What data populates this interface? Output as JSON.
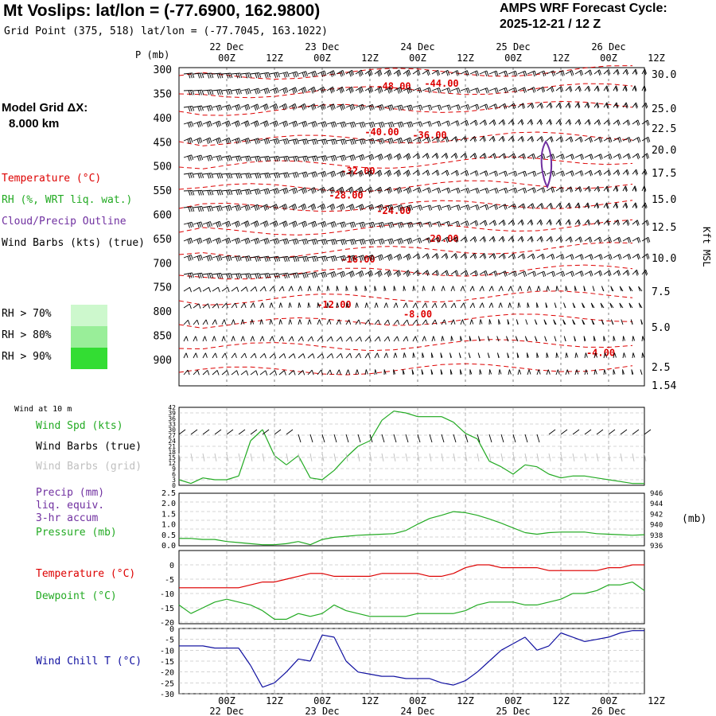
{
  "header": {
    "title": "Mt Voslips:  lat/lon = (-77.6900, 162.9800)",
    "grid_point": "Grid Point (375, 518) lat/lon = (-77.7045, 163.1022)",
    "cycle_label": "AMPS WRF Forecast Cycle:",
    "cycle_value": "2025-12-21 / 12  Z"
  },
  "model": {
    "label": "Model Grid ΔX:",
    "value": "8.000 km"
  },
  "colors": {
    "temperature": "#dd0000",
    "rh": "#22aa22",
    "cloud": "#7030a0",
    "wind_grid": "#c0c0c0",
    "wind_chill": "#1010a0",
    "rh70": "#cdf8cd",
    "rh80": "#99ee99",
    "rh90": "#33dd33"
  },
  "legend": {
    "temperature": "Temperature (°C)",
    "rh": "RH (%, WRT liq. wat.)",
    "cloud": "Cloud/Precip Outline",
    "wind": "Wind Barbs (kts) (true)",
    "rh70": "RH > 70%",
    "rh80": "RH > 80%",
    "rh90": "RH > 90%",
    "wind10m": "Wind at 10 m",
    "wind_spd": "Wind Spd (kts)",
    "barbs_true": "Wind Barbs (true)",
    "barbs_grid": "Wind Barbs (grid)",
    "precip": "Precip (mm)",
    "liq": "liq. equiv.",
    "accum": "3-hr accum",
    "pressure": "Pressure (mb)",
    "temp2": "Temperature (°C)",
    "dewpoint": "Dewpoint (°C)",
    "windchill": "Wind Chill T (°C)"
  },
  "chart_data": [
    {
      "type": "contour",
      "id": "cross-section",
      "ylabel": "P (mb)",
      "right_label": "Kft MSL",
      "x": {
        "range": [
          0,
          117
        ],
        "unit": "hours from 2025-12-21 12Z"
      },
      "time_ticks": [
        "00Z",
        "12Z",
        "00Z",
        "12Z",
        "00Z",
        "12Z",
        "00Z",
        "12Z",
        "00Z",
        "12Z"
      ],
      "date_ticks": [
        "22 Dec",
        "23 Dec",
        "24 Dec",
        "25 Dec",
        "26 Dec"
      ],
      "pressure_ticks": [
        300,
        350,
        400,
        450,
        500,
        550,
        600,
        650,
        700,
        750,
        800,
        850,
        900
      ],
      "kft_ticks": [
        "30.0",
        "25.0",
        "22.5",
        "20.0",
        "17.5",
        "15.0",
        "12.5",
        "10.0",
        "7.5",
        "5.0",
        "2.5",
        "1.54"
      ],
      "temperature_contours": [
        {
          "label": "-48.00",
          "x": 54,
          "p": 334
        },
        {
          "label": "-44.00",
          "x": 66,
          "p": 328
        },
        {
          "label": "-40.00",
          "x": 51,
          "p": 428
        },
        {
          "label": "-36.00",
          "x": 63,
          "p": 435
        },
        {
          "label": "-32.00",
          "x": 45,
          "p": 509
        },
        {
          "label": "-28.00",
          "x": 42,
          "p": 559
        },
        {
          "label": "-24.00",
          "x": 54,
          "p": 591
        },
        {
          "label": "-20.00",
          "x": 66,
          "p": 649
        },
        {
          "label": "-16.00",
          "x": 45,
          "p": 691
        },
        {
          "label": "-12.00",
          "x": 39,
          "p": 785
        },
        {
          "label": "-8.00",
          "x": 60,
          "p": 805
        },
        {
          "label": "-4.00",
          "x": 106,
          "p": 885
        }
      ]
    },
    {
      "type": "line",
      "id": "wind-speed-10m",
      "x": [
        0,
        3,
        6,
        9,
        12,
        15,
        18,
        21,
        24,
        27,
        30,
        33,
        36,
        39,
        42,
        45,
        48,
        51,
        54,
        57,
        60,
        63,
        66,
        69,
        72,
        75,
        78,
        81,
        84,
        87,
        90,
        93,
        96,
        99,
        102,
        105,
        108,
        111,
        114,
        117
      ],
      "series": [
        {
          "name": "Wind Spd (kts)",
          "values": [
            3,
            1,
            4,
            3,
            3,
            5,
            24,
            30,
            16,
            11,
            16,
            4,
            3,
            8,
            15,
            21,
            24,
            35,
            40,
            39,
            37,
            37,
            37,
            34,
            28,
            25,
            13,
            10,
            6,
            11,
            10,
            6,
            4,
            5,
            5,
            4,
            3,
            2,
            1,
            1
          ]
        }
      ],
      "ylim": [
        0,
        42
      ],
      "y_ticks": [
        0,
        3,
        6,
        9,
        12,
        15,
        18,
        21,
        24,
        27,
        30,
        33,
        36,
        39,
        42
      ]
    },
    {
      "type": "line",
      "id": "precip-pressure",
      "x": [
        0,
        3,
        6,
        9,
        12,
        15,
        18,
        21,
        24,
        27,
        30,
        33,
        36,
        39,
        42,
        45,
        48,
        51,
        54,
        57,
        60,
        63,
        66,
        69,
        72,
        75,
        78,
        81,
        84,
        87,
        90,
        93,
        96,
        99,
        102,
        105,
        108,
        111,
        114,
        117
      ],
      "series": [
        {
          "name": "Pressure (mb)",
          "values": [
            937.4,
            937.4,
            937.2,
            937.2,
            936.8,
            936.6,
            936.4,
            936.2,
            936.2,
            936.4,
            936.8,
            936.2,
            937.2,
            937.6,
            937.8,
            938.0,
            938.1,
            938.2,
            938.3,
            938.9,
            940.1,
            941.2,
            941.8,
            942.5,
            942.3,
            941.8,
            941.1,
            940.3,
            939.4,
            938.5,
            938.2,
            938.5,
            938.6,
            938.6,
            938.6,
            938.3,
            938.2,
            938.1,
            938.0,
            938.1
          ]
        }
      ],
      "y_ticks_precip": [
        "0.0",
        "0.5",
        "1.0",
        "1.5",
        "2.0",
        "2.5"
      ],
      "y_ticks_pressure": [
        936,
        938,
        940,
        942,
        944,
        946
      ],
      "right_unit": "(mb)",
      "ylim_pressure": [
        936,
        946
      ]
    },
    {
      "type": "line",
      "id": "temp-dewpoint",
      "x": [
        0,
        3,
        6,
        9,
        12,
        15,
        18,
        21,
        24,
        27,
        30,
        33,
        36,
        39,
        42,
        45,
        48,
        51,
        54,
        57,
        60,
        63,
        66,
        69,
        72,
        75,
        78,
        81,
        84,
        87,
        90,
        93,
        96,
        99,
        102,
        105,
        108,
        111,
        114,
        117
      ],
      "series": [
        {
          "name": "Temperature (°C)",
          "values": [
            -8,
            -8,
            -8,
            -8,
            -8,
            -8,
            -7,
            -6,
            -6,
            -5,
            -4,
            -3,
            -3,
            -4,
            -4,
            -4,
            -4,
            -3,
            -3,
            -3,
            -3,
            -4,
            -4,
            -3,
            -1,
            0,
            0,
            -1,
            -1,
            -1,
            -1,
            -2,
            -2,
            -2,
            -2,
            -2,
            -1,
            -1,
            0,
            0
          ]
        },
        {
          "name": "Dewpoint (°C)",
          "values": [
            -14,
            -17,
            -15,
            -13,
            -12,
            -13,
            -14,
            -16,
            -19,
            -19,
            -17,
            -18,
            -17,
            -14,
            -16,
            -17,
            -18,
            -18,
            -18,
            -18,
            -17,
            -17,
            -17,
            -17,
            -16,
            -14,
            -13,
            -13,
            -13,
            -14,
            -14,
            -13,
            -12,
            -10,
            -10,
            -9,
            -7,
            -7,
            -6,
            -9
          ]
        }
      ],
      "ylim": [
        -20,
        0
      ],
      "y_ticks": [
        0,
        -5,
        -10,
        -15,
        -20
      ]
    },
    {
      "type": "line",
      "id": "wind-chill",
      "x": [
        0,
        3,
        6,
        9,
        12,
        15,
        18,
        21,
        24,
        27,
        30,
        33,
        36,
        39,
        42,
        45,
        48,
        51,
        54,
        57,
        60,
        63,
        66,
        69,
        72,
        75,
        78,
        81,
        84,
        87,
        90,
        93,
        96,
        99,
        102,
        105,
        108,
        111,
        114,
        117
      ],
      "series": [
        {
          "name": "Wind Chill T (°C)",
          "values": [
            -8,
            -8,
            -8,
            -9,
            -9,
            -9,
            -17,
            -27,
            -25,
            -20,
            -14,
            -15,
            -3,
            -4,
            -15,
            -20,
            -21,
            -22,
            -22,
            -23,
            -23,
            -23,
            -25,
            -26,
            -24,
            -20,
            -15,
            -10,
            -7,
            -4,
            -10,
            -8,
            -2,
            -4,
            -6,
            -5,
            -4,
            -2,
            -1,
            -1
          ]
        }
      ],
      "ylim": [
        -30,
        0
      ],
      "y_ticks": [
        0,
        -5,
        -10,
        -15,
        -20,
        -25,
        -30
      ]
    }
  ]
}
